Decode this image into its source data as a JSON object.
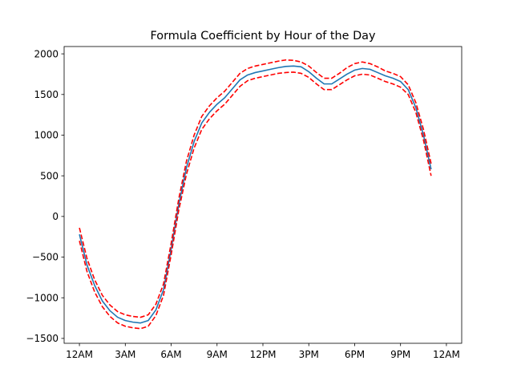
{
  "chart_data": {
    "type": "line",
    "title": "Formula Coefficient by Hour of the Day",
    "xlabel": "",
    "ylabel": "",
    "xlim": [
      -1,
      25
    ],
    "ylim": [
      -1560,
      2090
    ],
    "x_ticks": [
      {
        "value": 0,
        "label": "12AM"
      },
      {
        "value": 3,
        "label": "3AM"
      },
      {
        "value": 6,
        "label": "6AM"
      },
      {
        "value": 9,
        "label": "9AM"
      },
      {
        "value": 12,
        "label": "12PM"
      },
      {
        "value": 15,
        "label": "3PM"
      },
      {
        "value": 18,
        "label": "6PM"
      },
      {
        "value": 21,
        "label": "9PM"
      },
      {
        "value": 24,
        "label": "12AM"
      }
    ],
    "y_ticks": [
      {
        "value": 2000,
        "label": "2000"
      },
      {
        "value": 1500,
        "label": "1500"
      },
      {
        "value": 1000,
        "label": "1000"
      },
      {
        "value": 500,
        "label": "500"
      },
      {
        "value": 0,
        "label": "0"
      },
      {
        "value": -500,
        "label": "−500"
      },
      {
        "value": -1000,
        "label": "−1000"
      },
      {
        "value": -1500,
        "label": "−1500"
      }
    ],
    "grid": false,
    "legend": "none",
    "series": [
      {
        "style": "solid",
        "color": "#1f77b4",
        "x": [
          0,
          0.5,
          1,
          1.5,
          2,
          2.5,
          3,
          3.5,
          4,
          4.5,
          5,
          5.5,
          6,
          6.5,
          7,
          7.5,
          8,
          8.5,
          9,
          9.5,
          10,
          10.5,
          11,
          11.5,
          12,
          12.5,
          13,
          13.5,
          14,
          14.5,
          15,
          15.5,
          16,
          16.5,
          17,
          17.5,
          18,
          18.5,
          19,
          19.5,
          20,
          20.5,
          21,
          21.5,
          22,
          22.5,
          23
        ],
        "y": [
          -220,
          -600,
          -850,
          -1040,
          -1160,
          -1240,
          -1280,
          -1300,
          -1310,
          -1280,
          -1150,
          -900,
          -400,
          150,
          600,
          920,
          1150,
          1280,
          1380,
          1460,
          1570,
          1680,
          1740,
          1770,
          1790,
          1810,
          1830,
          1845,
          1850,
          1840,
          1780,
          1700,
          1630,
          1630,
          1690,
          1750,
          1800,
          1820,
          1810,
          1770,
          1730,
          1700,
          1660,
          1560,
          1340,
          1000,
          580
        ]
      },
      {
        "style": "dashed",
        "color": "#ff0000",
        "x": [
          0,
          0.5,
          1,
          1.5,
          2,
          2.5,
          3,
          3.5,
          4,
          4.5,
          5,
          5.5,
          6,
          6.5,
          7,
          7.5,
          8,
          8.5,
          9,
          9.5,
          10,
          10.5,
          11,
          11.5,
          12,
          12.5,
          13,
          13.5,
          14,
          14.5,
          15,
          15.5,
          16,
          16.5,
          17,
          17.5,
          18,
          18.5,
          19,
          19.5,
          20,
          20.5,
          21,
          21.5,
          22,
          22.5,
          23
        ],
        "y": [
          -140,
          -520,
          -780,
          -970,
          -1090,
          -1170,
          -1210,
          -1230,
          -1240,
          -1210,
          -1080,
          -830,
          -330,
          220,
          680,
          1000,
          1230,
          1360,
          1460,
          1540,
          1650,
          1760,
          1820,
          1850,
          1870,
          1890,
          1910,
          1925,
          1920,
          1900,
          1850,
          1770,
          1700,
          1700,
          1760,
          1830,
          1880,
          1900,
          1880,
          1840,
          1790,
          1760,
          1720,
          1620,
          1400,
          1070,
          650
        ]
      },
      {
        "style": "dashed",
        "color": "#ff0000",
        "x": [
          0,
          0.5,
          1,
          1.5,
          2,
          2.5,
          3,
          3.5,
          4,
          4.5,
          5,
          5.5,
          6,
          6.5,
          7,
          7.5,
          8,
          8.5,
          9,
          9.5,
          10,
          10.5,
          11,
          11.5,
          12,
          12.5,
          13,
          13.5,
          14,
          14.5,
          15,
          15.5,
          16,
          16.5,
          17,
          17.5,
          18,
          18.5,
          19,
          19.5,
          20,
          20.5,
          21,
          21.5,
          22,
          22.5,
          23
        ],
        "y": [
          -300,
          -680,
          -930,
          -1110,
          -1230,
          -1310,
          -1350,
          -1370,
          -1380,
          -1350,
          -1220,
          -970,
          -470,
          80,
          520,
          840,
          1070,
          1200,
          1300,
          1380,
          1490,
          1600,
          1670,
          1700,
          1720,
          1740,
          1760,
          1770,
          1775,
          1760,
          1710,
          1630,
          1560,
          1560,
          1620,
          1680,
          1730,
          1750,
          1740,
          1700,
          1660,
          1630,
          1590,
          1500,
          1280,
          940,
          500
        ]
      }
    ]
  }
}
